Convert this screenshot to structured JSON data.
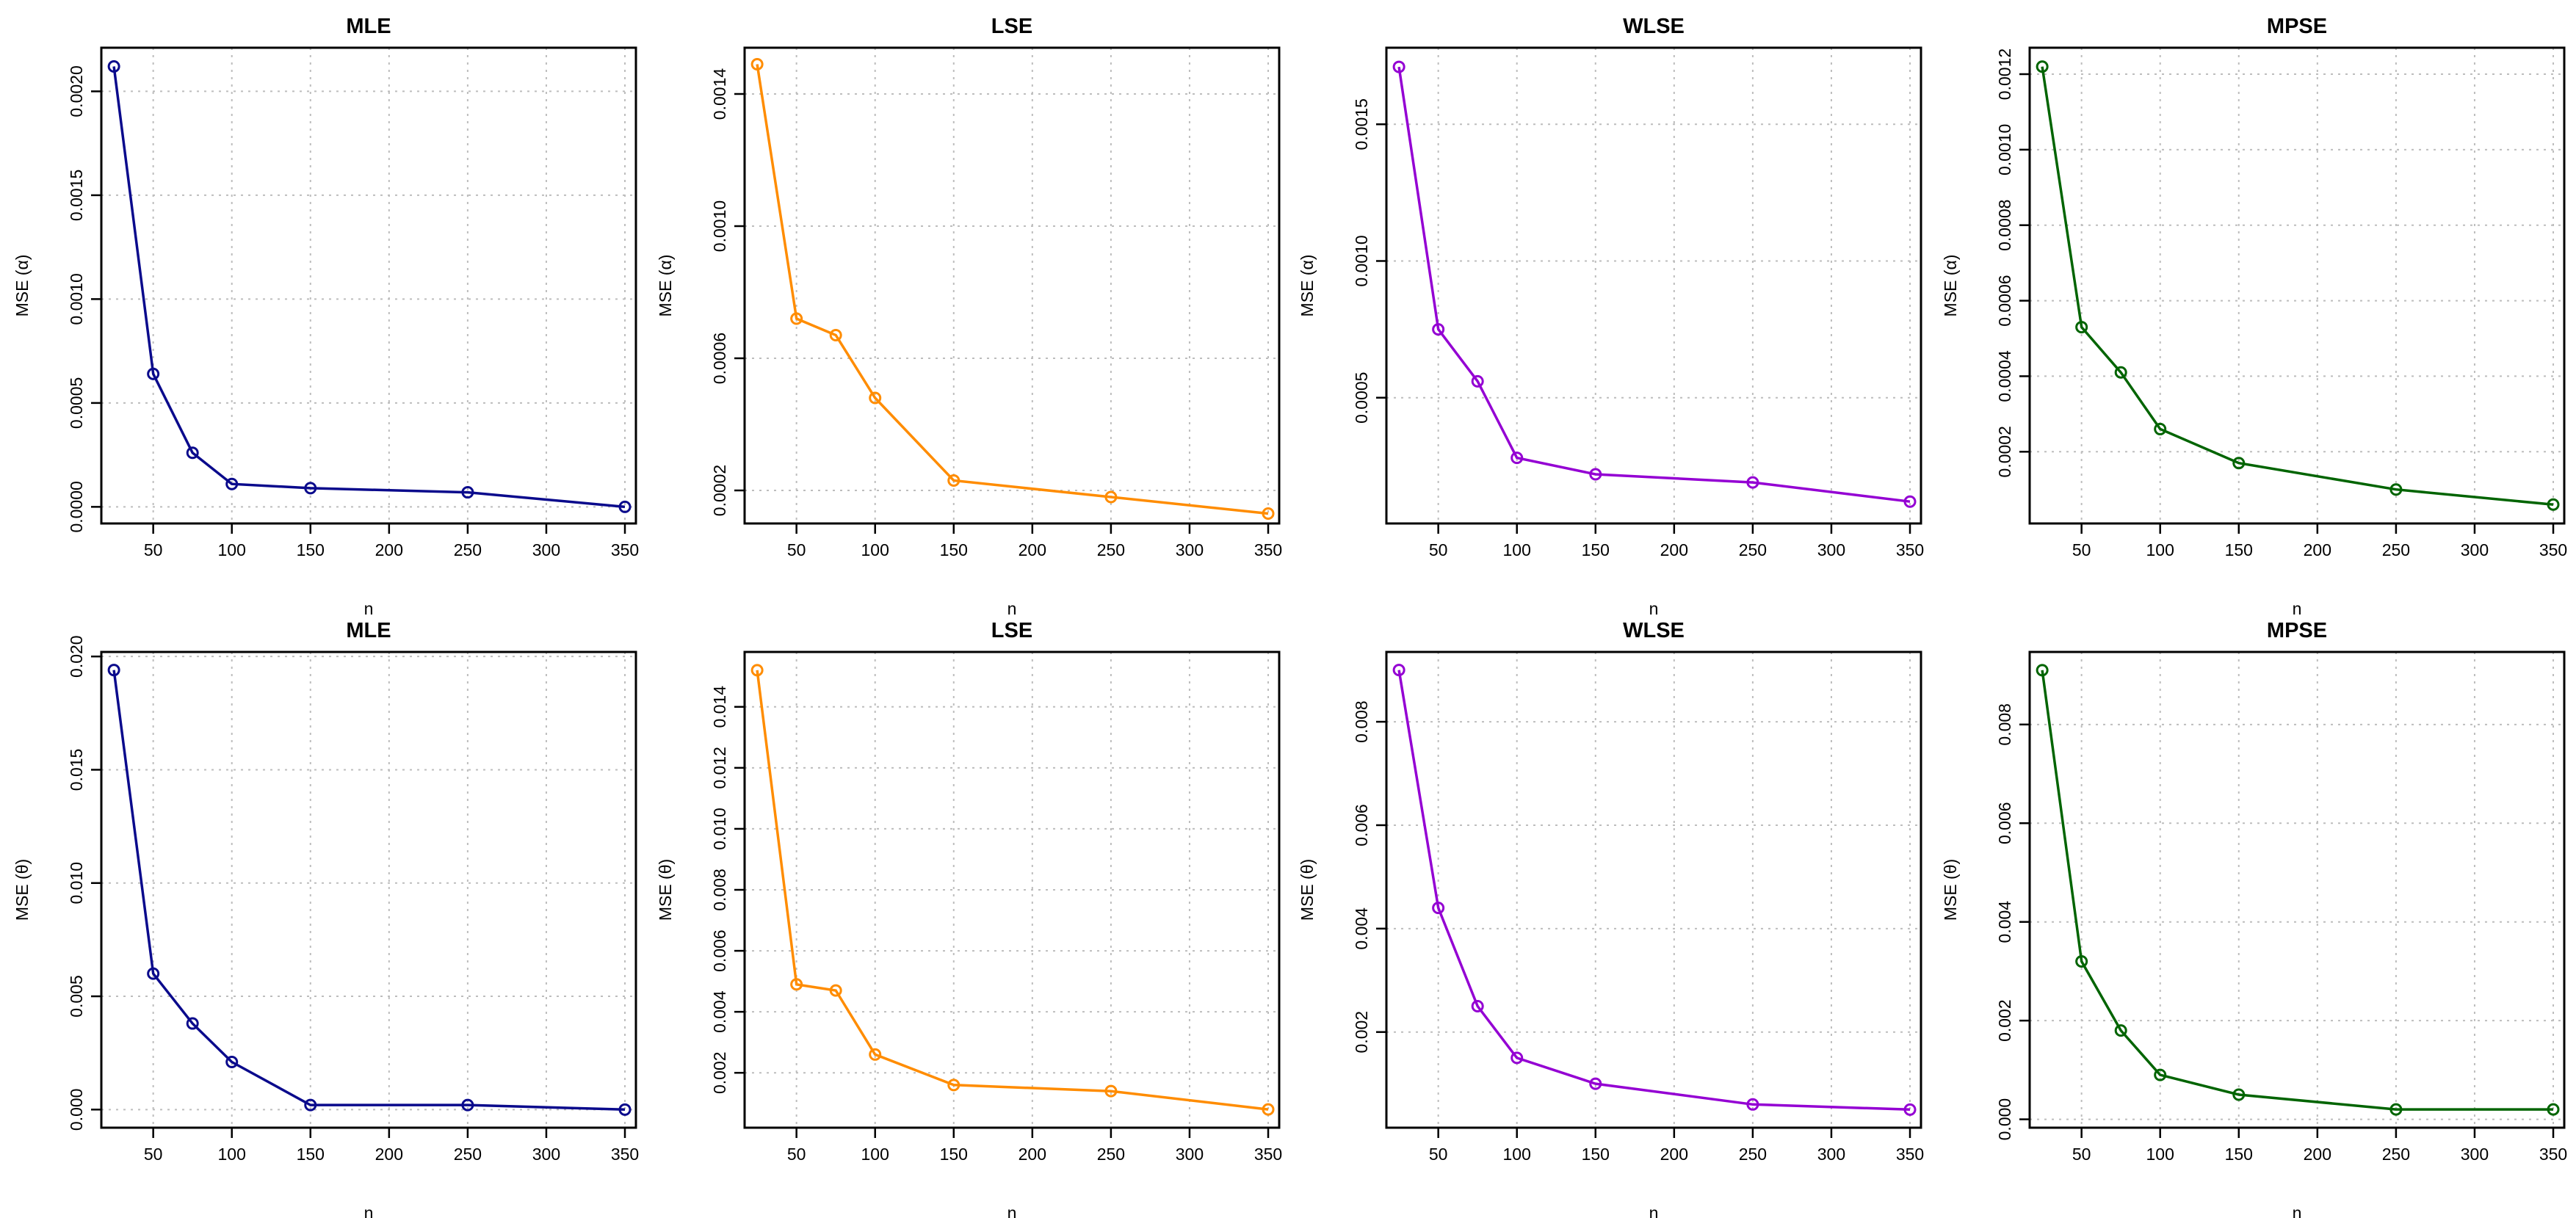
{
  "chart_data": [
    {
      "type": "line",
      "title": "MLE",
      "xlabel": "n",
      "ylabel": "MSE (α)",
      "color": "#0a0a8c",
      "x": [
        25,
        50,
        75,
        100,
        150,
        250,
        350
      ],
      "y": [
        0.00212,
        0.00064,
        0.00026,
        0.00011,
        9e-05,
        7e-05,
        0.0
      ],
      "xlim": [
        17,
        357
      ],
      "ylim": [
        -8e-05,
        0.00221
      ],
      "xticks": [
        50,
        100,
        150,
        200,
        250,
        300,
        350
      ],
      "xtick_labels": [
        "50",
        "100",
        "150",
        "200",
        "250",
        "300",
        "350"
      ],
      "yticks": [
        0,
        0.0005,
        0.001,
        0.0015,
        0.002
      ],
      "ytick_labels": [
        "0.0000",
        "0.0005",
        "0.0010",
        "0.0015",
        "0.0020"
      ]
    },
    {
      "type": "line",
      "title": "LSE",
      "xlabel": "n",
      "ylabel": "MSE (α)",
      "color": "#ff8c00",
      "x": [
        25,
        50,
        75,
        100,
        150,
        250,
        350
      ],
      "y": [
        0.00149,
        0.00072,
        0.00067,
        0.00048,
        0.00023,
        0.00018,
        0.00013
      ],
      "xlim": [
        17,
        357
      ],
      "ylim": [
        0.0001,
        0.00154
      ],
      "xticks": [
        50,
        100,
        150,
        200,
        250,
        300,
        350
      ],
      "xtick_labels": [
        "50",
        "100",
        "150",
        "200",
        "250",
        "300",
        "350"
      ],
      "yticks": [
        0.0002,
        0.0006,
        0.001,
        0.0014
      ],
      "ytick_labels": [
        "0.0002",
        "0.0006",
        "0.0010",
        "0.0014"
      ]
    },
    {
      "type": "line",
      "title": "WLSE",
      "xlabel": "n",
      "ylabel": "MSE (α)",
      "color": "#9400d3",
      "x": [
        25,
        50,
        75,
        100,
        150,
        250,
        350
      ],
      "y": [
        0.00171,
        0.00075,
        0.00056,
        0.00028,
        0.00022,
        0.00019,
        0.00012
      ],
      "xlim": [
        17,
        357
      ],
      "ylim": [
        4e-05,
        0.00178
      ],
      "xticks": [
        50,
        100,
        150,
        200,
        250,
        300,
        350
      ],
      "xtick_labels": [
        "50",
        "100",
        "150",
        "200",
        "250",
        "300",
        "350"
      ],
      "yticks": [
        0.0005,
        0.001,
        0.0015
      ],
      "ytick_labels": [
        "0.0005",
        "0.0010",
        "0.0015"
      ]
    },
    {
      "type": "line",
      "title": "MPSE",
      "xlabel": "n",
      "ylabel": "MSE (α)",
      "color": "#006400",
      "x": [
        25,
        50,
        75,
        100,
        150,
        250,
        350
      ],
      "y": [
        0.00122,
        0.00053,
        0.00041,
        0.00026,
        0.00017,
        0.0001,
        6e-05
      ],
      "xlim": [
        17,
        357
      ],
      "ylim": [
        1e-05,
        0.00127
      ],
      "xticks": [
        50,
        100,
        150,
        200,
        250,
        300,
        350
      ],
      "xtick_labels": [
        "50",
        "100",
        "150",
        "200",
        "250",
        "300",
        "350"
      ],
      "yticks": [
        0.0002,
        0.0004,
        0.0006,
        0.0008,
        0.001,
        0.0012
      ],
      "ytick_labels": [
        "0.0002",
        "0.0004",
        "0.0006",
        "0.0008",
        "0.0010",
        "0.0012"
      ]
    },
    {
      "type": "line",
      "title": "MLE",
      "xlabel": "n",
      "ylabel": "MSE (θ)",
      "color": "#0a0a8c",
      "x": [
        25,
        50,
        75,
        100,
        150,
        250,
        350
      ],
      "y": [
        0.0194,
        0.006,
        0.0038,
        0.0021,
        0.0002,
        0.0002,
        0.0
      ],
      "xlim": [
        17,
        357
      ],
      "ylim": [
        -0.0008,
        0.0202
      ],
      "xticks": [
        50,
        100,
        150,
        200,
        250,
        300,
        350
      ],
      "xtick_labels": [
        "50",
        "100",
        "150",
        "200",
        "250",
        "300",
        "350"
      ],
      "yticks": [
        0,
        0.005,
        0.01,
        0.015,
        0.02
      ],
      "ytick_labels": [
        "0.000",
        "0.005",
        "0.010",
        "0.015",
        "0.020"
      ]
    },
    {
      "type": "line",
      "title": "LSE",
      "xlabel": "n",
      "ylabel": "MSE (θ)",
      "color": "#ff8c00",
      "x": [
        25,
        50,
        75,
        100,
        150,
        250,
        350
      ],
      "y": [
        0.0152,
        0.0049,
        0.0047,
        0.0026,
        0.0016,
        0.0014,
        0.0008
      ],
      "xlim": [
        17,
        357
      ],
      "ylim": [
        0.0002,
        0.0158
      ],
      "xticks": [
        50,
        100,
        150,
        200,
        250,
        300,
        350
      ],
      "xtick_labels": [
        "50",
        "100",
        "150",
        "200",
        "250",
        "300",
        "350"
      ],
      "yticks": [
        0.002,
        0.004,
        0.006,
        0.008,
        0.01,
        0.012,
        0.014
      ],
      "ytick_labels": [
        "0.002",
        "0.004",
        "0.006",
        "0.008",
        "0.010",
        "0.012",
        "0.014"
      ]
    },
    {
      "type": "line",
      "title": "WLSE",
      "xlabel": "n",
      "ylabel": "MSE (θ)",
      "color": "#9400d3",
      "x": [
        25,
        50,
        75,
        100,
        150,
        250,
        350
      ],
      "y": [
        0.009,
        0.0044,
        0.0025,
        0.0015,
        0.001,
        0.0006,
        0.0005
      ],
      "xlim": [
        17,
        357
      ],
      "ylim": [
        0.00015,
        0.00935
      ],
      "xticks": [
        50,
        100,
        150,
        200,
        250,
        300,
        350
      ],
      "xtick_labels": [
        "50",
        "100",
        "150",
        "200",
        "250",
        "300",
        "350"
      ],
      "yticks": [
        0.002,
        0.004,
        0.006,
        0.008
      ],
      "ytick_labels": [
        "0.002",
        "0.004",
        "0.006",
        "0.008"
      ]
    },
    {
      "type": "line",
      "title": "MPSE",
      "xlabel": "n",
      "ylabel": "MSE (θ)",
      "color": "#006400",
      "x": [
        25,
        50,
        75,
        100,
        150,
        250,
        350
      ],
      "y": [
        0.0091,
        0.0032,
        0.0018,
        0.0009,
        0.0005,
        0.0002,
        0.0002
      ],
      "xlim": [
        17,
        357
      ],
      "ylim": [
        -0.00017,
        0.00947
      ],
      "xticks": [
        50,
        100,
        150,
        200,
        250,
        300,
        350
      ],
      "xtick_labels": [
        "50",
        "100",
        "150",
        "200",
        "250",
        "300",
        "350"
      ],
      "yticks": [
        0,
        0.002,
        0.004,
        0.006,
        0.008
      ],
      "ytick_labels": [
        "0.000",
        "0.002",
        "0.004",
        "0.006",
        "0.008"
      ]
    }
  ]
}
